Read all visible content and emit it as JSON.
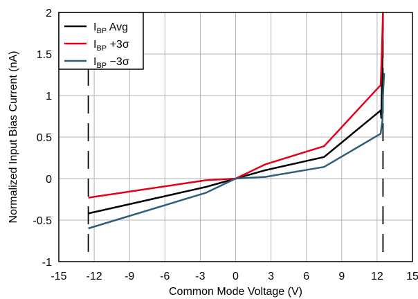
{
  "chart_data": {
    "type": "line",
    "title": "",
    "xlabel": "Common Mode Voltage (V)",
    "ylabel": "Normalized Input Bias Current (nA)",
    "xlim": [
      -15,
      15
    ],
    "ylim": [
      -1,
      2
    ],
    "xticks": [
      -15,
      -12,
      -9,
      -6,
      -3,
      0,
      3,
      6,
      9,
      12,
      15
    ],
    "yticks": [
      -1,
      -0.5,
      0,
      0.5,
      1,
      1.5,
      2
    ],
    "xtick_labels": [
      "-15",
      "-12",
      "-9",
      "-6",
      "-3",
      "0",
      "3",
      "6",
      "9",
      "12",
      "15"
    ],
    "ytick_labels": [
      "-1",
      "-0.5",
      "0",
      "0.5",
      "1",
      "1.5",
      "2"
    ],
    "grid": true,
    "legend_position": "top-left",
    "vlines": [
      {
        "x": -12.5,
        "style": "dashed",
        "color": "#000000"
      },
      {
        "x": 12.5,
        "style": "dashed",
        "color": "#000000"
      }
    ],
    "series": [
      {
        "name": "IBP Avg",
        "legend_main": "I",
        "legend_sub": "BP",
        "legend_suffix": " Avg",
        "color": "#000000",
        "x": [
          -12.5,
          -2.5,
          0,
          2.5,
          7.5,
          12.3,
          12.35,
          12.45,
          12.5
        ],
        "y": [
          -0.42,
          -0.1,
          0,
          0.1,
          0.26,
          0.82,
          0.73,
          1.4,
          2.0
        ]
      },
      {
        "name": "IBP +3σ",
        "legend_main": "I",
        "legend_sub": "BP",
        "legend_suffix": " +3σ",
        "color": "#e3001b",
        "x": [
          -12.5,
          -2.5,
          0,
          2.5,
          7.5,
          12.2,
          12.3,
          12.4,
          12.5
        ],
        "y": [
          -0.23,
          -0.02,
          0,
          0.17,
          0.39,
          1.11,
          1.12,
          1.5,
          2.0
        ]
      },
      {
        "name": "IBP −3σ",
        "legend_main": "I",
        "legend_sub": "BP",
        "legend_suffix": " −3σ",
        "color": "#2e5f78",
        "x": [
          -12.5,
          -2.5,
          0,
          2.5,
          7.5,
          12.3,
          12.45,
          12.5,
          12.6
        ],
        "y": [
          -0.6,
          -0.17,
          0,
          0.02,
          0.14,
          0.54,
          0.7,
          1.0,
          1.27
        ]
      }
    ]
  }
}
